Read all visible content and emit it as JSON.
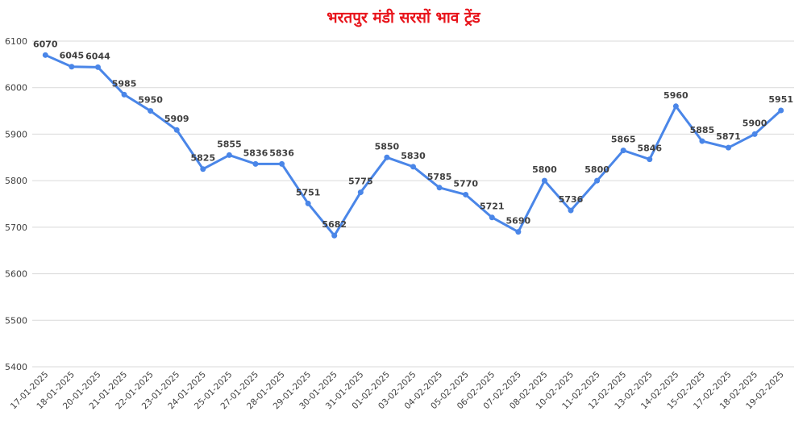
{
  "chart_data": {
    "type": "line",
    "title": "भरतपुर मंडी सरसों भाव ट्रेंड",
    "xlabel": "",
    "ylabel": "",
    "ylim": [
      5400,
      6100
    ],
    "yticks": [
      5400,
      5500,
      5600,
      5700,
      5800,
      5900,
      6000,
      6100
    ],
    "grid": true,
    "legend": "none",
    "categories": [
      "17-01-2025",
      "18-01-2025",
      "20-01-2025",
      "21-01-2025",
      "22-01-2025",
      "23-01-2025",
      "24-01-2025",
      "25-01-2025",
      "27-01-2025",
      "28-01-2025",
      "29-01-2025",
      "30-01-2025",
      "31-01-2025",
      "01-02-2025",
      "03-02-2025",
      "04-02-2025",
      "05-02-2025",
      "06-02-2025",
      "07-02-2025",
      "08-02-2025",
      "10-02-2025",
      "11-02-2025",
      "12-02-2025",
      "13-02-2025",
      "14-02-2025",
      "15-02-2025",
      "17-02-2025",
      "18-02-2025",
      "19-02-2025"
    ],
    "series": [
      {
        "values": [
          6070,
          6045,
          6044,
          5985,
          5950,
          5909,
          5825,
          5855,
          5836,
          5836,
          5751,
          5682,
          5775,
          5850,
          5830,
          5785,
          5770,
          5721,
          5690,
          5800,
          5736,
          5800,
          5865,
          5846,
          5960,
          5885,
          5871,
          5900,
          5951
        ]
      }
    ],
    "colors": {
      "title": "#e8141b",
      "line": "#4a86e8",
      "grid": "#d9d9d9",
      "text": "#404040"
    }
  }
}
